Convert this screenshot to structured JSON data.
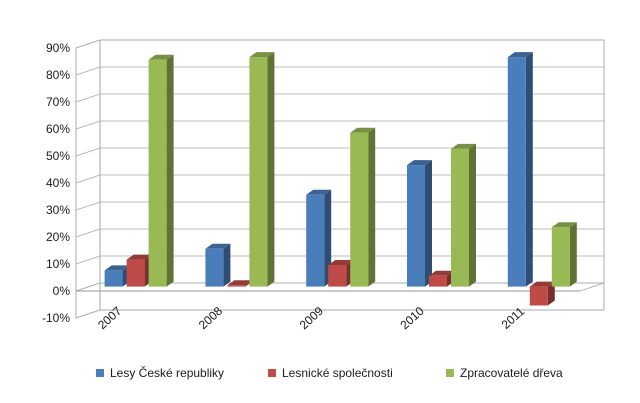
{
  "chart_data": {
    "type": "bar",
    "style": "3d-clustered-column",
    "categories": [
      "2007",
      "2008",
      "2009",
      "2010",
      "2011"
    ],
    "series": [
      {
        "name": "Lesy České republiky",
        "color": "#4a7ebb",
        "values": [
          6,
          14,
          34,
          45,
          85
        ]
      },
      {
        "name": "Lesnické společnosti",
        "color": "#be4b48",
        "values": [
          10,
          0.5,
          8,
          4,
          -7
        ]
      },
      {
        "name": "Zpracovatelé dřeva",
        "color": "#98b954",
        "values": [
          84,
          85,
          57,
          51,
          22
        ]
      }
    ],
    "ylim": [
      -10,
      90
    ],
    "ytick_labels": [
      "-10%",
      "0%",
      "10%",
      "20%",
      "30%",
      "40%",
      "50%",
      "60%",
      "70%",
      "80%",
      "90%"
    ],
    "grid": true,
    "legend_position": "bottom",
    "title": "",
    "xlabel": "",
    "ylabel": ""
  }
}
